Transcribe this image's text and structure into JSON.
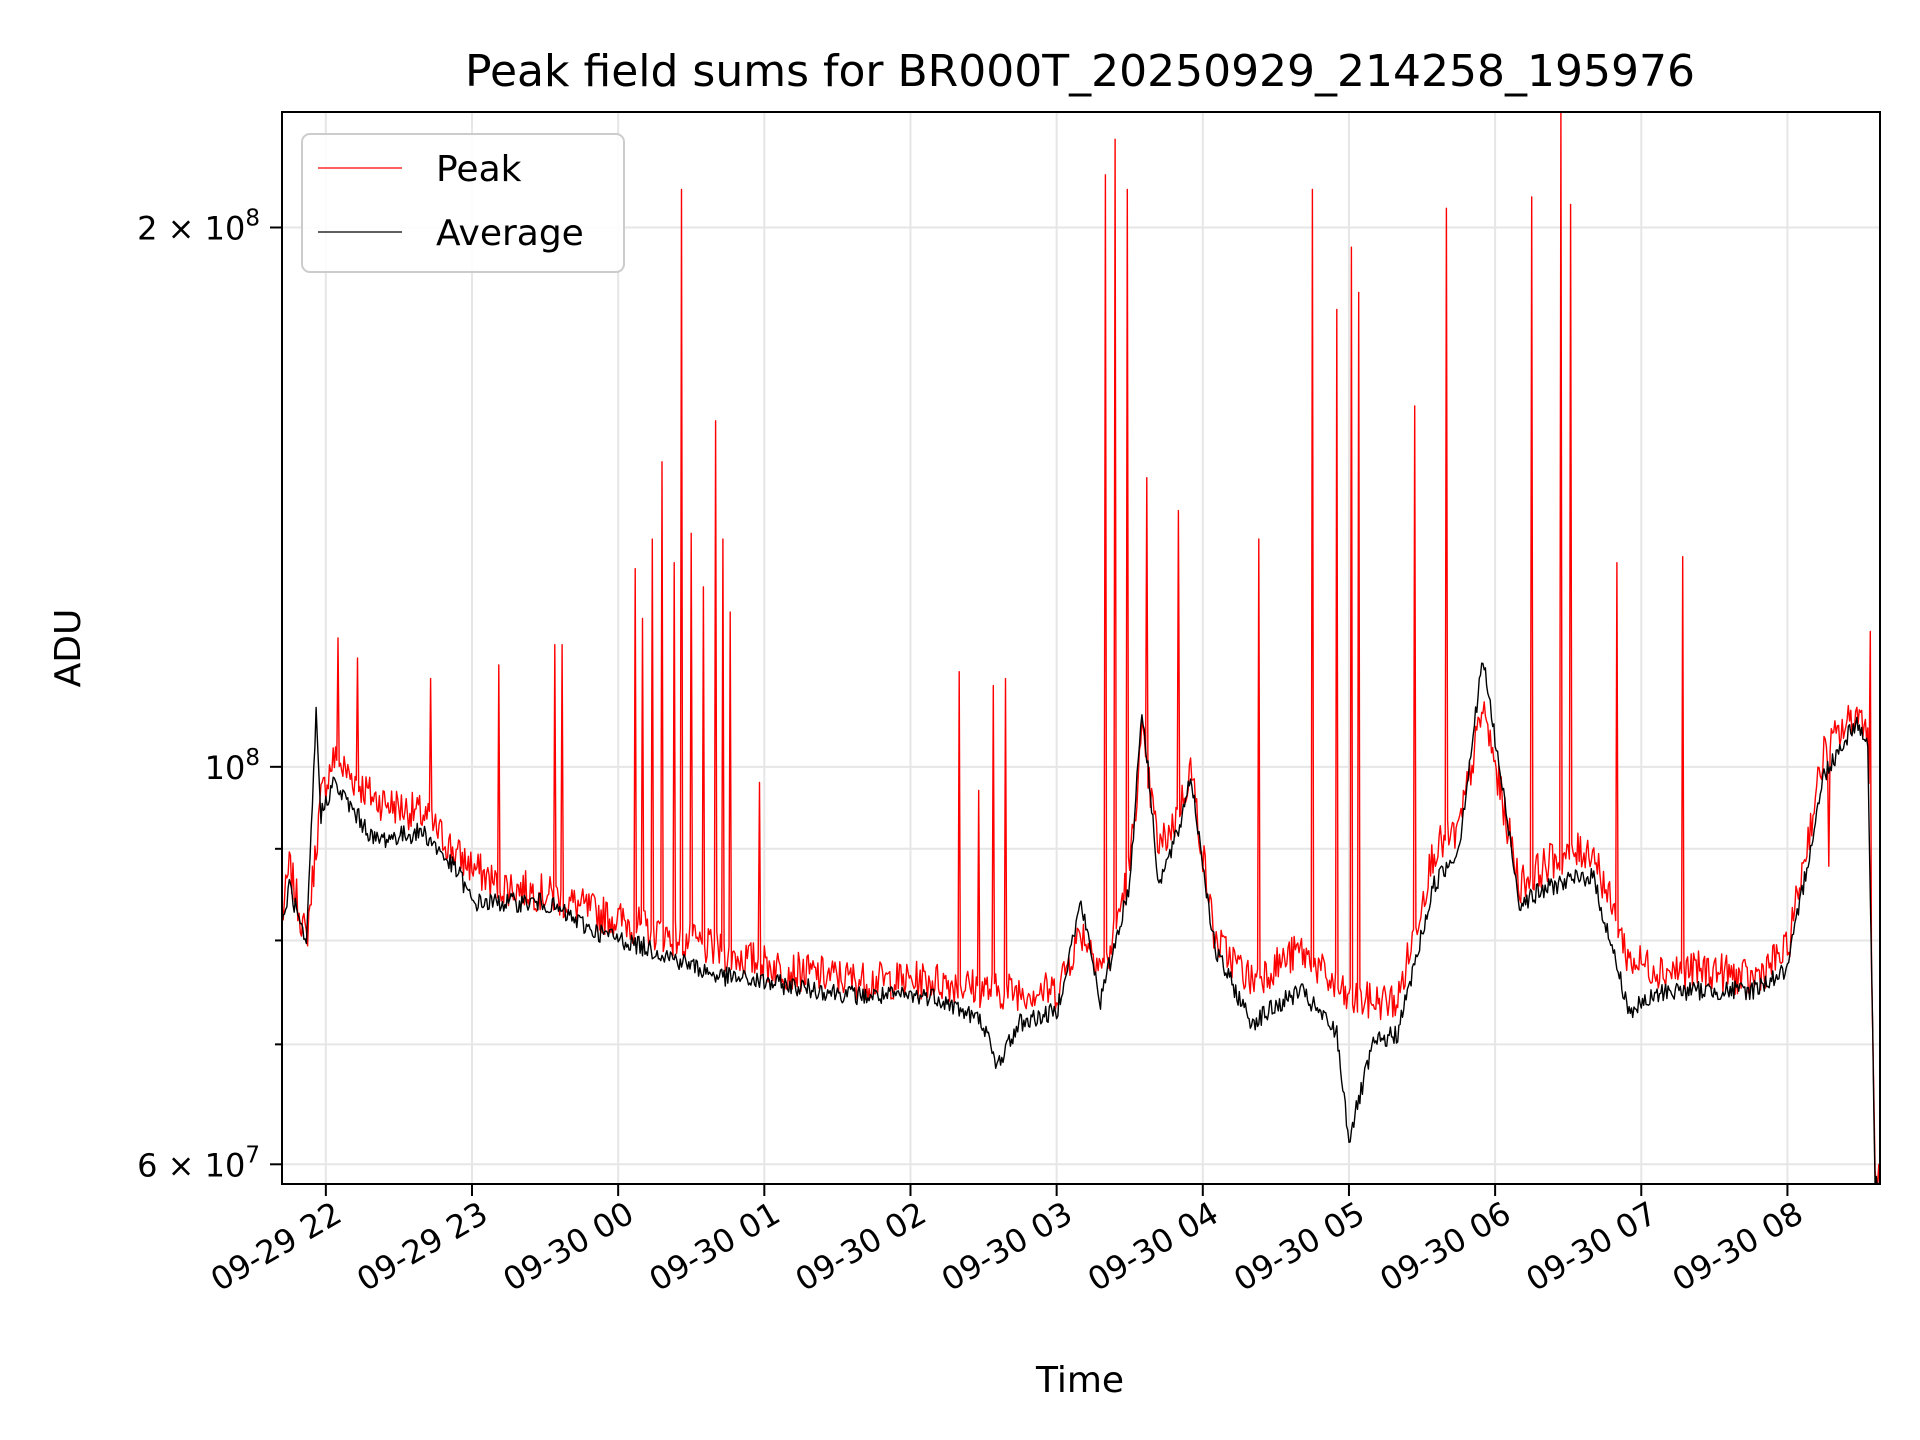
{
  "chart_data": {
    "type": "line",
    "title": "Peak field sums for BR000T_20250929_214258_195976",
    "xlabel": "Time",
    "ylabel": "ADU",
    "y_scale": "log",
    "ylim": [
      58500000,
      232000000
    ],
    "xlim": [
      "2025-09-29 21:42",
      "2025-09-30 08:38"
    ],
    "grid": true,
    "legend_position": "upper left",
    "x_ticks": [
      {
        "t": "2025-09-29 22:00",
        "label": "09-29 22"
      },
      {
        "t": "2025-09-29 23:00",
        "label": "09-29 23"
      },
      {
        "t": "2025-09-30 00:00",
        "label": "09-30 00"
      },
      {
        "t": "2025-09-30 01:00",
        "label": "09-30 01"
      },
      {
        "t": "2025-09-30 02:00",
        "label": "09-30 02"
      },
      {
        "t": "2025-09-30 03:00",
        "label": "09-30 03"
      },
      {
        "t": "2025-09-30 04:00",
        "label": "09-30 04"
      },
      {
        "t": "2025-09-30 05:00",
        "label": "09-30 05"
      },
      {
        "t": "2025-09-30 06:00",
        "label": "09-30 06"
      },
      {
        "t": "2025-09-30 07:00",
        "label": "09-30 07"
      },
      {
        "t": "2025-09-30 08:00",
        "label": "09-30 08"
      }
    ],
    "y_major_ticks": [
      {
        "v": 60000000,
        "base": "6 × 10",
        "exp": "7"
      },
      {
        "v": 100000000,
        "base": "10",
        "exp": "8"
      },
      {
        "v": 200000000,
        "base": "2 × 10",
        "exp": "8"
      }
    ],
    "y_minor_ticks": [
      70000000,
      80000000,
      90000000
    ],
    "series": [
      {
        "name": "Peak",
        "color": "#ff0000",
        "points": [
          [
            "2025-09-29 21:42",
            82000000
          ],
          [
            "2025-09-29 21:45",
            88000000
          ],
          [
            "2025-09-29 21:52",
            80000000
          ],
          [
            "2025-09-29 21:58",
            96000000
          ],
          [
            "2025-09-29 22:03",
            101000000
          ],
          [
            "2025-09-29 22:20",
            96000000
          ],
          [
            "2025-09-29 22:40",
            94000000
          ],
          [
            "2025-09-29 22:55",
            89000000
          ],
          [
            "2025-09-29 23:10",
            86000000
          ],
          [
            "2025-09-29 23:30",
            85000000
          ],
          [
            "2025-09-29 23:50",
            83000000
          ],
          [
            "2025-09-30 00:15",
            81000000
          ],
          [
            "2025-09-30 00:40",
            79000000
          ],
          [
            "2025-09-30 01:10",
            77000000
          ],
          [
            "2025-09-30 01:40",
            76000000
          ],
          [
            "2025-09-30 02:10",
            76000000
          ],
          [
            "2025-09-30 02:35",
            75000000
          ],
          [
            "2025-09-30 03:00",
            75000000
          ],
          [
            "2025-09-30 03:10",
            81000000
          ],
          [
            "2025-09-30 03:20",
            77000000
          ],
          [
            "2025-09-30 03:30",
            88000000
          ],
          [
            "2025-09-30 03:35",
            104000000
          ],
          [
            "2025-09-30 03:42",
            90000000
          ],
          [
            "2025-09-30 03:50",
            94000000
          ],
          [
            "2025-09-30 03:55",
            100000000
          ],
          [
            "2025-09-30 04:05",
            80000000
          ],
          [
            "2025-09-30 04:20",
            76000000
          ],
          [
            "2025-09-30 04:40",
            79000000
          ],
          [
            "2025-09-30 05:00",
            74000000
          ],
          [
            "2025-09-30 05:20",
            74000000
          ],
          [
            "2025-09-30 05:35",
            90000000
          ],
          [
            "2025-09-30 05:45",
            92000000
          ],
          [
            "2025-09-30 05:55",
            108000000
          ],
          [
            "2025-09-30 06:10",
            86000000
          ],
          [
            "2025-09-30 06:25",
            89000000
          ],
          [
            "2025-09-30 06:40",
            90000000
          ],
          [
            "2025-09-30 06:55",
            78000000
          ],
          [
            "2025-09-30 07:10",
            77000000
          ],
          [
            "2025-09-30 07:30",
            77000000
          ],
          [
            "2025-09-30 07:45",
            76000000
          ],
          [
            "2025-09-30 08:00",
            79000000
          ],
          [
            "2025-09-30 08:15",
            102000000
          ],
          [
            "2025-09-30 08:28",
            107000000
          ],
          [
            "2025-09-30 08:33",
            106000000
          ],
          [
            "2025-09-30 08:36",
            59000000
          ]
        ],
        "spikes": [
          [
            "2025-09-29 22:05",
            118000000
          ],
          [
            "2025-09-29 22:13",
            115000000
          ],
          [
            "2025-09-29 22:43",
            112000000
          ],
          [
            "2025-09-29 23:11",
            114000000
          ],
          [
            "2025-09-29 23:34",
            117000000
          ],
          [
            "2025-09-29 23:37",
            117000000
          ],
          [
            "2025-09-30 00:07",
            129000000
          ],
          [
            "2025-09-30 00:10",
            121000000
          ],
          [
            "2025-09-30 00:14",
            134000000
          ],
          [
            "2025-09-30 00:18",
            148000000
          ],
          [
            "2025-09-30 00:23",
            130000000
          ],
          [
            "2025-09-30 00:26",
            210000000
          ],
          [
            "2025-09-30 00:30",
            135000000
          ],
          [
            "2025-09-30 00:35",
            126000000
          ],
          [
            "2025-09-30 00:40",
            156000000
          ],
          [
            "2025-09-30 00:43",
            134000000
          ],
          [
            "2025-09-30 00:46",
            122000000
          ],
          [
            "2025-09-30 00:58",
            98000000
          ],
          [
            "2025-09-30 02:20",
            113000000
          ],
          [
            "2025-09-30 02:28",
            97000000
          ],
          [
            "2025-09-30 02:34",
            111000000
          ],
          [
            "2025-09-30 02:39",
            112000000
          ],
          [
            "2025-09-30 03:20",
            214000000
          ],
          [
            "2025-09-30 03:24",
            224000000
          ],
          [
            "2025-09-30 03:29",
            210000000
          ],
          [
            "2025-09-30 03:37",
            145000000
          ],
          [
            "2025-09-30 03:50",
            139000000
          ],
          [
            "2025-09-30 04:23",
            134000000
          ],
          [
            "2025-09-30 04:45",
            210000000
          ],
          [
            "2025-09-30 04:55",
            180000000
          ],
          [
            "2025-09-30 05:01",
            195000000
          ],
          [
            "2025-09-30 05:04",
            184000000
          ],
          [
            "2025-09-30 05:27",
            159000000
          ],
          [
            "2025-09-30 05:40",
            205000000
          ],
          [
            "2025-09-30 06:15",
            208000000
          ],
          [
            "2025-09-30 06:27",
            232000000
          ],
          [
            "2025-09-30 06:31",
            206000000
          ],
          [
            "2025-09-30 06:50",
            130000000
          ],
          [
            "2025-09-30 07:17",
            131000000
          ],
          [
            "2025-09-30 08:17",
            88000000
          ],
          [
            "2025-09-30 08:34",
            119000000
          ]
        ]
      },
      {
        "name": "Average",
        "color": "#000000",
        "points": [
          [
            "2025-09-29 21:42",
            81000000
          ],
          [
            "2025-09-29 21:45",
            86000000
          ],
          [
            "2025-09-29 21:52",
            79000000
          ],
          [
            "2025-09-29 21:56",
            107000000
          ],
          [
            "2025-09-29 21:58",
            94000000
          ],
          [
            "2025-09-29 22:03",
            98000000
          ],
          [
            "2025-09-29 22:20",
            91000000
          ],
          [
            "2025-09-29 22:40",
            92000000
          ],
          [
            "2025-09-29 22:55",
            87000000
          ],
          [
            "2025-09-29 23:00",
            84000000
          ],
          [
            "2025-09-29 23:30",
            84000000
          ],
          [
            "2025-09-29 23:50",
            81000000
          ],
          [
            "2025-09-30 00:15",
            79000000
          ],
          [
            "2025-09-30 00:40",
            76500000
          ],
          [
            "2025-09-30 01:10",
            75500000
          ],
          [
            "2025-09-30 01:40",
            74500000
          ],
          [
            "2025-09-30 02:10",
            74500000
          ],
          [
            "2025-09-30 02:30",
            72000000
          ],
          [
            "2025-09-30 02:35",
            68000000
          ],
          [
            "2025-09-30 02:45",
            72000000
          ],
          [
            "2025-09-30 03:00",
            73000000
          ],
          [
            "2025-09-30 03:10",
            84000000
          ],
          [
            "2025-09-30 03:18",
            74000000
          ],
          [
            "2025-09-30 03:30",
            86000000
          ],
          [
            "2025-09-30 03:35",
            108000000
          ],
          [
            "2025-09-30 03:42",
            86000000
          ],
          [
            "2025-09-30 03:50",
            92000000
          ],
          [
            "2025-09-30 03:55",
            99000000
          ],
          [
            "2025-09-30 04:05",
            79000000
          ],
          [
            "2025-09-30 04:20",
            72000000
          ],
          [
            "2025-09-30 04:40",
            75000000
          ],
          [
            "2025-09-30 04:55",
            71000000
          ],
          [
            "2025-09-30 05:00",
            62000000
          ],
          [
            "2025-09-30 05:10",
            70000000
          ],
          [
            "2025-09-30 05:20",
            71000000
          ],
          [
            "2025-09-30 05:35",
            86000000
          ],
          [
            "2025-09-30 05:45",
            90000000
          ],
          [
            "2025-09-30 05:55",
            115000000
          ],
          [
            "2025-09-30 06:10",
            84000000
          ],
          [
            "2025-09-30 06:25",
            86000000
          ],
          [
            "2025-09-30 06:40",
            87000000
          ],
          [
            "2025-09-30 06:55",
            73000000
          ],
          [
            "2025-09-30 07:10",
            75000000
          ],
          [
            "2025-09-30 07:30",
            75000000
          ],
          [
            "2025-09-30 07:45",
            75000000
          ],
          [
            "2025-09-30 08:00",
            77000000
          ],
          [
            "2025-09-30 08:15",
            99000000
          ],
          [
            "2025-09-30 08:28",
            106000000
          ],
          [
            "2025-09-30 08:33",
            103000000
          ],
          [
            "2025-09-30 08:36",
            58500000
          ]
        ]
      }
    ]
  }
}
